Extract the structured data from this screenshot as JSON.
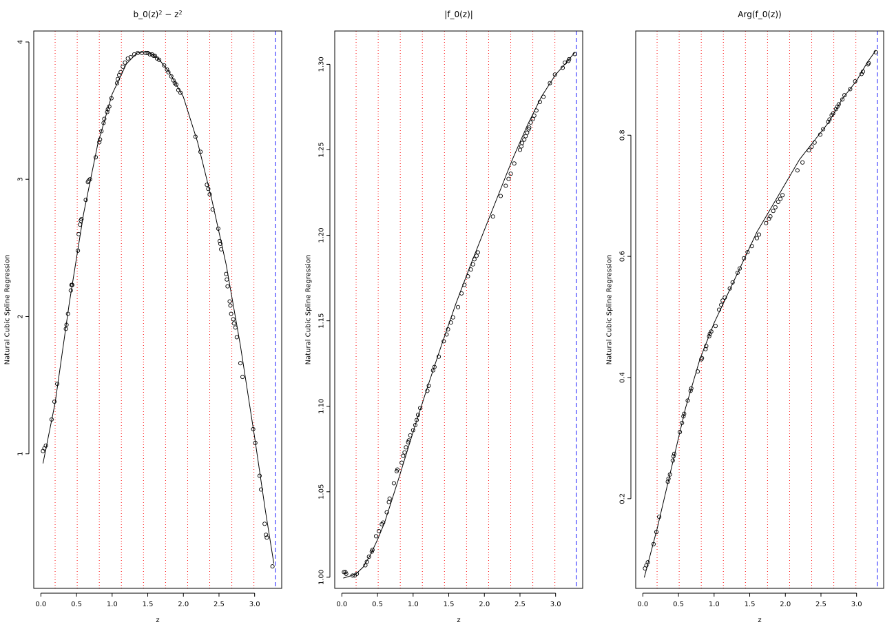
{
  "figure": {
    "xlabel": "z",
    "ylabel": "Natural Cubic Spline Regression"
  },
  "styles": {
    "knot_color": "#ff0000",
    "boundary_color": "#0000ff",
    "fit_color": "#000000",
    "point_color": "#000000",
    "background": "#ffffff"
  },
  "chart_data": [
    {
      "type": "scatter",
      "title": "b_0(z)",
      "title_sup1": "2",
      "title_mid": " − z",
      "title_sup2": "2",
      "xlabel": "z",
      "ylabel": "Natural Cubic Spline Regression",
      "xlim": [
        -0.1,
        3.38
      ],
      "ylim": [
        0.02,
        4.08
      ],
      "xticks": [
        0.0,
        0.5,
        1.0,
        1.5,
        2.0,
        2.5,
        3.0
      ],
      "xtick_labels": [
        "0.0",
        "0.5",
        "1.0",
        "1.5",
        "2.0",
        "2.5",
        "3.0"
      ],
      "yticks": [
        1,
        2,
        3,
        4
      ],
      "ytick_labels": [
        "1",
        "2",
        "3",
        "4"
      ],
      "knots": [
        0.2,
        0.51,
        0.82,
        1.13,
        1.44,
        1.75,
        2.06,
        2.37,
        2.68,
        2.99
      ],
      "boundary": 3.29,
      "series": [
        {
          "kind": "fit",
          "x": [
            0.03,
            0.2,
            0.4,
            0.6,
            0.8,
            1.0,
            1.2,
            1.35,
            1.5,
            1.65,
            1.8,
            2.0,
            2.2,
            2.4,
            2.6,
            2.8,
            3.0,
            3.15,
            3.27
          ],
          "y": [
            0.93,
            1.37,
            2.1,
            2.75,
            3.26,
            3.62,
            3.84,
            3.92,
            3.93,
            3.88,
            3.78,
            3.6,
            3.27,
            2.85,
            2.38,
            1.79,
            1.12,
            0.59,
            0.2
          ]
        },
        {
          "kind": "points",
          "x": [
            0.03,
            0.05,
            0.07,
            0.15,
            0.19,
            0.23,
            0.35,
            0.36,
            0.38,
            0.42,
            0.43,
            0.44,
            0.52,
            0.53,
            0.55,
            0.56,
            0.57,
            0.63,
            0.66,
            0.67,
            0.69,
            0.77,
            0.82,
            0.83,
            0.85,
            0.88,
            0.89,
            0.93,
            0.94,
            0.96,
            0.99,
            1.07,
            1.08,
            1.1,
            1.12,
            1.15,
            1.18,
            1.22,
            1.26,
            1.31,
            1.36,
            1.42,
            1.47,
            1.5,
            1.53,
            1.56,
            1.58,
            1.6,
            1.63,
            1.66,
            1.73,
            1.77,
            1.79,
            1.83,
            1.86,
            1.88,
            1.9,
            1.93,
            1.96,
            2.17,
            2.24,
            2.33,
            2.35,
            2.37,
            2.41,
            2.49,
            2.51,
            2.52,
            2.53,
            2.6,
            2.61,
            2.62,
            2.65,
            2.66,
            2.67,
            2.7,
            2.71,
            2.73,
            2.75,
            2.8,
            2.83,
            2.98,
            3.01,
            3.07,
            3.09,
            3.14,
            3.16,
            3.17,
            3.25
          ],
          "y": [
            1.02,
            1.04,
            1.06,
            1.25,
            1.38,
            1.51,
            1.91,
            1.94,
            2.02,
            2.19,
            2.23,
            2.23,
            2.48,
            2.6,
            2.67,
            2.7,
            2.71,
            2.85,
            2.98,
            2.99,
            3.0,
            3.16,
            3.27,
            3.29,
            3.35,
            3.41,
            3.44,
            3.49,
            3.51,
            3.53,
            3.59,
            3.7,
            3.73,
            3.76,
            3.78,
            3.82,
            3.85,
            3.88,
            3.89,
            3.91,
            3.92,
            3.92,
            3.92,
            3.92,
            3.91,
            3.91,
            3.9,
            3.9,
            3.88,
            3.87,
            3.83,
            3.8,
            3.78,
            3.75,
            3.72,
            3.7,
            3.69,
            3.65,
            3.63,
            3.31,
            3.2,
            2.96,
            2.93,
            2.89,
            2.78,
            2.64,
            2.55,
            2.53,
            2.49,
            2.31,
            2.27,
            2.22,
            2.11,
            2.08,
            2.02,
            1.98,
            1.95,
            1.92,
            1.85,
            1.66,
            1.56,
            1.18,
            1.08,
            0.84,
            0.74,
            0.49,
            0.41,
            0.39,
            0.18
          ]
        }
      ]
    },
    {
      "type": "scatter",
      "title": "|f_0(z)|",
      "xlabel": "z",
      "ylabel": "Natural Cubic Spline Regression",
      "xlim": [
        -0.1,
        3.38
      ],
      "ylim": [
        0.9935,
        1.3195
      ],
      "xticks": [
        0.0,
        0.5,
        1.0,
        1.5,
        2.0,
        2.5,
        3.0
      ],
      "xtick_labels": [
        "0.0",
        "0.5",
        "1.0",
        "1.5",
        "2.0",
        "2.5",
        "3.0"
      ],
      "yticks": [
        1.0,
        1.05,
        1.1,
        1.15,
        1.2,
        1.25,
        1.3
      ],
      "ytick_labels": [
        "1.00",
        "1.05",
        "1.10",
        "1.15",
        "1.20",
        "1.25",
        "1.30"
      ],
      "knots": [
        0.2,
        0.51,
        0.82,
        1.13,
        1.44,
        1.75,
        2.06,
        2.37,
        2.68,
        2.99
      ],
      "boundary": 3.29,
      "series": [
        {
          "kind": "fit",
          "x": [
            0.02,
            0.1,
            0.2,
            0.3,
            0.4,
            0.5,
            0.6,
            0.7,
            0.8,
            1.0,
            1.2,
            1.4,
            1.6,
            1.8,
            2.0,
            2.2,
            2.4,
            2.6,
            2.8,
            3.0,
            3.15,
            3.27
          ],
          "y": [
            0.9995,
            1.0005,
            1.002,
            1.006,
            1.013,
            1.022,
            1.032,
            1.045,
            1.058,
            1.085,
            1.111,
            1.136,
            1.16,
            1.182,
            1.203,
            1.224,
            1.245,
            1.264,
            1.281,
            1.294,
            1.301,
            1.307
          ]
        },
        {
          "kind": "points",
          "x": [
            0.03,
            0.05,
            0.06,
            0.15,
            0.18,
            0.21,
            0.33,
            0.35,
            0.38,
            0.42,
            0.43,
            0.48,
            0.52,
            0.56,
            0.58,
            0.63,
            0.66,
            0.67,
            0.73,
            0.77,
            0.78,
            0.84,
            0.86,
            0.88,
            0.9,
            0.93,
            0.94,
            0.96,
            1.0,
            1.03,
            1.05,
            1.07,
            1.1,
            1.2,
            1.22,
            1.28,
            1.3,
            1.36,
            1.43,
            1.47,
            1.49,
            1.53,
            1.56,
            1.63,
            1.68,
            1.72,
            1.77,
            1.81,
            1.84,
            1.86,
            1.89,
            1.91,
            2.12,
            2.23,
            2.3,
            2.34,
            2.37,
            2.42,
            2.5,
            2.52,
            2.53,
            2.56,
            2.58,
            2.6,
            2.62,
            2.63,
            2.65,
            2.68,
            2.7,
            2.73,
            2.78,
            2.83,
            2.92,
            2.99,
            3.1,
            3.13,
            3.18,
            3.19,
            3.27
          ],
          "y": [
            1.003,
            1.003,
            1.002,
            1.001,
            1.001,
            1.002,
            1.007,
            1.009,
            1.012,
            1.015,
            1.016,
            1.024,
            1.027,
            1.031,
            1.032,
            1.038,
            1.044,
            1.046,
            1.055,
            1.062,
            1.063,
            1.067,
            1.071,
            1.073,
            1.076,
            1.079,
            1.08,
            1.083,
            1.086,
            1.089,
            1.092,
            1.095,
            1.099,
            1.109,
            1.112,
            1.121,
            1.123,
            1.129,
            1.138,
            1.142,
            1.145,
            1.149,
            1.152,
            1.158,
            1.166,
            1.171,
            1.176,
            1.18,
            1.183,
            1.186,
            1.188,
            1.19,
            1.211,
            1.223,
            1.229,
            1.233,
            1.236,
            1.242,
            1.25,
            1.252,
            1.254,
            1.256,
            1.258,
            1.26,
            1.262,
            1.263,
            1.266,
            1.268,
            1.27,
            1.273,
            1.278,
            1.281,
            1.289,
            1.294,
            1.298,
            1.301,
            1.302,
            1.303,
            1.306
          ]
        }
      ]
    },
    {
      "type": "scatter",
      "title": "Arg(f_0(z))",
      "xlabel": "z",
      "ylabel": "Natural Cubic Spline Regression",
      "xlim": [
        -0.1,
        3.38
      ],
      "ylim": [
        0.052,
        0.972
      ],
      "xticks": [
        0.0,
        0.5,
        1.0,
        1.5,
        2.0,
        2.5,
        3.0
      ],
      "xtick_labels": [
        "0.0",
        "0.5",
        "1.0",
        "1.5",
        "2.0",
        "2.5",
        "3.0"
      ],
      "yticks": [
        0.2,
        0.4,
        0.6,
        0.8
      ],
      "ytick_labels": [
        "0.2",
        "0.4",
        "0.6",
        "0.8"
      ],
      "knots": [
        0.2,
        0.51,
        0.82,
        1.13,
        1.44,
        1.75,
        2.06,
        2.37,
        2.68,
        2.99
      ],
      "boundary": 3.29,
      "series": [
        {
          "kind": "fit",
          "x": [
            0.02,
            0.2,
            0.4,
            0.6,
            0.8,
            1.0,
            1.2,
            1.4,
            1.6,
            1.8,
            2.0,
            2.2,
            2.4,
            2.6,
            2.8,
            3.0,
            3.15,
            3.27
          ],
          "y": [
            0.07,
            0.15,
            0.25,
            0.35,
            0.43,
            0.49,
            0.54,
            0.59,
            0.64,
            0.68,
            0.72,
            0.76,
            0.79,
            0.82,
            0.86,
            0.89,
            0.92,
            0.94
          ]
        },
        {
          "kind": "points",
          "x": [
            0.03,
            0.05,
            0.07,
            0.15,
            0.19,
            0.23,
            0.35,
            0.36,
            0.38,
            0.42,
            0.43,
            0.44,
            0.52,
            0.55,
            0.57,
            0.58,
            0.63,
            0.67,
            0.68,
            0.77,
            0.82,
            0.83,
            0.88,
            0.89,
            0.93,
            0.94,
            0.96,
            1.02,
            1.07,
            1.1,
            1.12,
            1.15,
            1.22,
            1.26,
            1.33,
            1.36,
            1.42,
            1.47,
            1.53,
            1.6,
            1.63,
            1.73,
            1.77,
            1.79,
            1.83,
            1.86,
            1.9,
            1.93,
            1.96,
            2.17,
            2.24,
            2.33,
            2.37,
            2.41,
            2.49,
            2.53,
            2.6,
            2.62,
            2.65,
            2.67,
            2.71,
            2.73,
            2.75,
            2.8,
            2.83,
            2.91,
            2.98,
            3.07,
            3.09,
            3.16,
            3.17,
            3.27
          ],
          "y": [
            0.085,
            0.09,
            0.095,
            0.125,
            0.145,
            0.17,
            0.228,
            0.233,
            0.24,
            0.263,
            0.27,
            0.274,
            0.31,
            0.325,
            0.336,
            0.34,
            0.362,
            0.378,
            0.382,
            0.41,
            0.43,
            0.432,
            0.447,
            0.452,
            0.468,
            0.472,
            0.476,
            0.485,
            0.512,
            0.52,
            0.527,
            0.532,
            0.547,
            0.557,
            0.573,
            0.58,
            0.597,
            0.607,
            0.617,
            0.63,
            0.636,
            0.655,
            0.662,
            0.666,
            0.675,
            0.681,
            0.69,
            0.695,
            0.701,
            0.742,
            0.755,
            0.775,
            0.781,
            0.788,
            0.801,
            0.81,
            0.822,
            0.826,
            0.833,
            0.836,
            0.843,
            0.847,
            0.851,
            0.859,
            0.866,
            0.876,
            0.889,
            0.901,
            0.905,
            0.917,
            0.919,
            0.937
          ]
        }
      ]
    }
  ]
}
